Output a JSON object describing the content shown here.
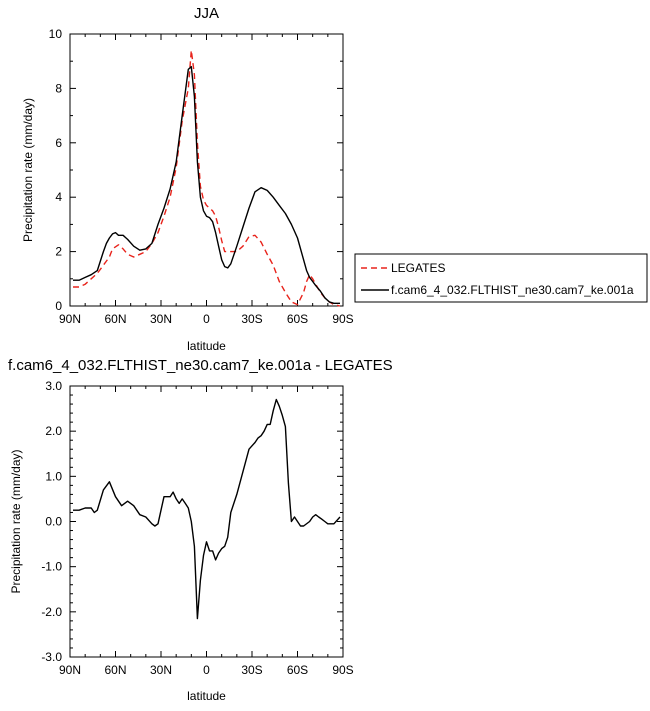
{
  "chart_data": [
    {
      "type": "line",
      "title": "JJA",
      "xlabel": "latitude",
      "ylabel": "Precipitation rate (mm/day)",
      "xlim": [
        90,
        -90
      ],
      "ylim": [
        0,
        10
      ],
      "xticks": [
        90,
        60,
        30,
        0,
        -30,
        -60,
        -90
      ],
      "xtick_labels": [
        "90N",
        "60N",
        "30N",
        "0",
        "30S",
        "60S",
        "90S"
      ],
      "yticks": [
        0,
        2,
        4,
        6,
        8,
        10
      ],
      "ytick_labels": [
        "0",
        "2",
        "4",
        "6",
        "8",
        "10"
      ],
      "legend_position": "right",
      "series": [
        {
          "name": "LEGATES",
          "color": "#e8231b",
          "dash": "dashed",
          "x": [
            88,
            84,
            80,
            76,
            72,
            68,
            64,
            62,
            58,
            55,
            52,
            48,
            44,
            40,
            36,
            32,
            28,
            24,
            20,
            16,
            12,
            10,
            8,
            6,
            4,
            2,
            0,
            -2,
            -4,
            -6,
            -8,
            -10,
            -12,
            -16,
            -20,
            -24,
            -28,
            -32,
            -36,
            -40,
            -44,
            -48,
            -52,
            -56,
            -60,
            -64,
            -66,
            -68,
            -70,
            -72,
            -75,
            -78,
            -81,
            -84,
            -88
          ],
          "values": [
            0.7,
            0.7,
            0.8,
            1.0,
            1.2,
            1.5,
            1.8,
            2.1,
            2.25,
            2.1,
            1.9,
            1.8,
            1.9,
            2.0,
            2.3,
            2.7,
            3.3,
            4.0,
            5.1,
            6.8,
            8.0,
            9.4,
            8.5,
            6.0,
            4.4,
            3.9,
            3.7,
            3.6,
            3.5,
            3.3,
            2.9,
            2.4,
            2.0,
            2.0,
            2.0,
            2.2,
            2.55,
            2.6,
            2.35,
            1.9,
            1.5,
            0.9,
            0.5,
            0.15,
            0.05,
            0.5,
            0.9,
            1.15,
            1.0,
            0.8,
            0.5,
            0.3,
            0.15,
            0.05,
            0.0
          ]
        },
        {
          "name": "f.cam6_4_032.FLTHIST_ne30.cam7_ke.001a",
          "color": "#000000",
          "dash": "solid",
          "x": [
            88,
            84,
            80,
            76,
            72,
            68,
            66,
            64,
            62,
            60,
            58,
            55,
            52,
            48,
            44,
            40,
            36,
            32,
            28,
            24,
            20,
            16,
            12,
            10,
            8,
            6,
            4,
            2,
            0,
            -2,
            -4,
            -6,
            -8,
            -10,
            -12,
            -14,
            -16,
            -20,
            -24,
            -28,
            -32,
            -36,
            -40,
            -44,
            -48,
            -52,
            -56,
            -60,
            -64,
            -66,
            -68,
            -70,
            -72,
            -75,
            -78,
            -81,
            -84,
            -88
          ],
          "values": [
            0.95,
            0.95,
            1.05,
            1.15,
            1.3,
            2.0,
            2.3,
            2.5,
            2.65,
            2.7,
            2.6,
            2.6,
            2.45,
            2.2,
            2.05,
            2.1,
            2.3,
            3.0,
            3.6,
            4.3,
            5.3,
            7.0,
            8.7,
            8.8,
            7.7,
            5.3,
            4.0,
            3.5,
            3.3,
            3.25,
            3.1,
            2.7,
            2.2,
            1.7,
            1.45,
            1.4,
            1.55,
            2.2,
            2.9,
            3.6,
            4.2,
            4.35,
            4.25,
            4.0,
            3.7,
            3.4,
            3.0,
            2.5,
            1.7,
            1.3,
            1.05,
            0.9,
            0.75,
            0.55,
            0.3,
            0.15,
            0.1,
            0.1
          ]
        }
      ]
    },
    {
      "type": "line",
      "title": "f.cam6_4_032.FLTHIST_ne30.cam7_ke.001a - LEGATES",
      "xlabel": "latitude",
      "ylabel": "Precipitation rate (mm/day)",
      "xlim": [
        90,
        -90
      ],
      "ylim": [
        -3,
        3
      ],
      "xticks": [
        90,
        60,
        30,
        0,
        -30,
        -60,
        -90
      ],
      "xtick_labels": [
        "90N",
        "60N",
        "30N",
        "0",
        "30S",
        "60S",
        "90S"
      ],
      "yticks": [
        -3,
        -2,
        -1,
        0,
        1,
        2,
        3
      ],
      "ytick_labels": [
        "-3.0",
        "-2.0",
        "-1.0",
        "0.0",
        "1.0",
        "2.0",
        "3.0"
      ],
      "series": [
        {
          "color": "#000000",
          "dash": "solid",
          "x": [
            88,
            84,
            80,
            76,
            74,
            72,
            68,
            64,
            60,
            56,
            52,
            48,
            44,
            40,
            36,
            34,
            32,
            30,
            28,
            24,
            22,
            20,
            18,
            16,
            14,
            12,
            10,
            8,
            6,
            4,
            2,
            0,
            -2,
            -4,
            -6,
            -8,
            -10,
            -12,
            -14,
            -16,
            -20,
            -24,
            -28,
            -32,
            -34,
            -36,
            -38,
            -40,
            -42,
            -44,
            -46,
            -48,
            -50,
            -52,
            -54,
            -56,
            -58,
            -60,
            -62,
            -64,
            -68,
            -70,
            -72,
            -74,
            -76,
            -78,
            -80,
            -84,
            -88
          ],
          "values": [
            0.25,
            0.25,
            0.3,
            0.3,
            0.2,
            0.25,
            0.7,
            0.88,
            0.55,
            0.35,
            0.45,
            0.35,
            0.15,
            0.1,
            -0.05,
            -0.1,
            -0.05,
            0.25,
            0.55,
            0.55,
            0.65,
            0.5,
            0.4,
            0.5,
            0.4,
            0.3,
            0.0,
            -0.55,
            -2.15,
            -1.3,
            -0.75,
            -0.45,
            -0.65,
            -0.65,
            -0.85,
            -0.7,
            -0.6,
            -0.55,
            -0.35,
            0.2,
            0.6,
            1.1,
            1.6,
            1.75,
            1.85,
            1.9,
            2.0,
            2.15,
            2.15,
            2.45,
            2.7,
            2.55,
            2.35,
            2.1,
            0.85,
            0.0,
            0.1,
            0.0,
            -0.1,
            -0.1,
            0.0,
            0.1,
            0.15,
            0.1,
            0.05,
            0.0,
            -0.05,
            -0.05,
            0.1
          ]
        }
      ]
    }
  ]
}
